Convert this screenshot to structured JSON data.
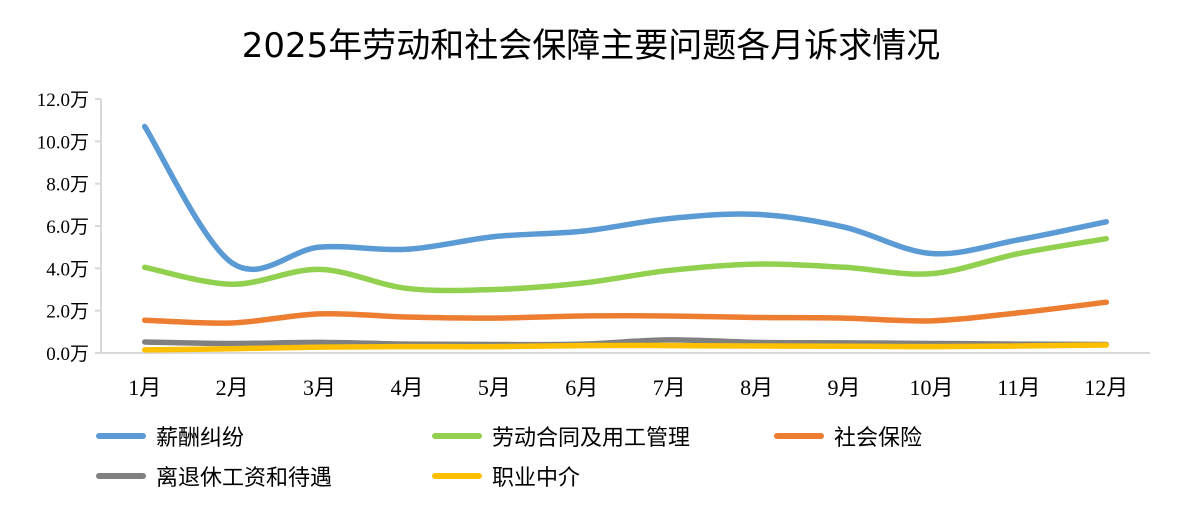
{
  "chart_data": {
    "type": "line",
    "title": "2025年劳动和社会保障主要问题各月诉求情况",
    "xlabel": "",
    "ylabel": "",
    "categories": [
      "1月",
      "2月",
      "3月",
      "4月",
      "5月",
      "6月",
      "7月",
      "8月",
      "9月",
      "10月",
      "11月",
      "12月"
    ],
    "yticks": [
      "0.0万",
      "2.0万",
      "4.0万",
      "6.0万",
      "8.0万",
      "10.0万",
      "12.0万"
    ],
    "ylim": [
      0,
      12
    ],
    "unit": "万",
    "grid": false,
    "smooth": true,
    "legend_position": "bottom",
    "series": [
      {
        "name": "薪酬纠纷",
        "color": "#5B9BD5",
        "values": [
          10.7,
          4.25,
          5.0,
          4.9,
          5.5,
          5.75,
          6.35,
          6.55,
          5.95,
          4.7,
          5.35,
          6.2
        ]
      },
      {
        "name": "劳动合同及用工管理",
        "color": "#92D050",
        "values": [
          4.05,
          3.25,
          3.95,
          3.05,
          3.0,
          3.3,
          3.9,
          4.2,
          4.05,
          3.75,
          4.7,
          5.4
        ]
      },
      {
        "name": "社会保险",
        "color": "#ED7D31",
        "values": [
          1.55,
          1.42,
          1.85,
          1.7,
          1.65,
          1.75,
          1.75,
          1.68,
          1.65,
          1.52,
          1.9,
          2.4
        ]
      },
      {
        "name": "离退休工资和待遇",
        "color": "#808080",
        "values": [
          0.52,
          0.45,
          0.5,
          0.42,
          0.4,
          0.42,
          0.62,
          0.5,
          0.48,
          0.45,
          0.42,
          0.4
        ]
      },
      {
        "name": "职业中介",
        "color": "#FFC000",
        "values": [
          0.15,
          0.2,
          0.28,
          0.3,
          0.3,
          0.35,
          0.35,
          0.33,
          0.32,
          0.3,
          0.33,
          0.38
        ]
      }
    ]
  },
  "chart_title": "2025年劳动和社会保障主要问题各月诉求情况",
  "legend": [
    {
      "label": "薪酬纠纷",
      "color": "#5B9BD5"
    },
    {
      "label": "劳动合同及用工管理",
      "color": "#92D050"
    },
    {
      "label": "社会保险",
      "color": "#ED7D31"
    },
    {
      "label": "离退休工资和待遇",
      "color": "#808080"
    },
    {
      "label": "职业中介",
      "color": "#FFC000"
    }
  ]
}
